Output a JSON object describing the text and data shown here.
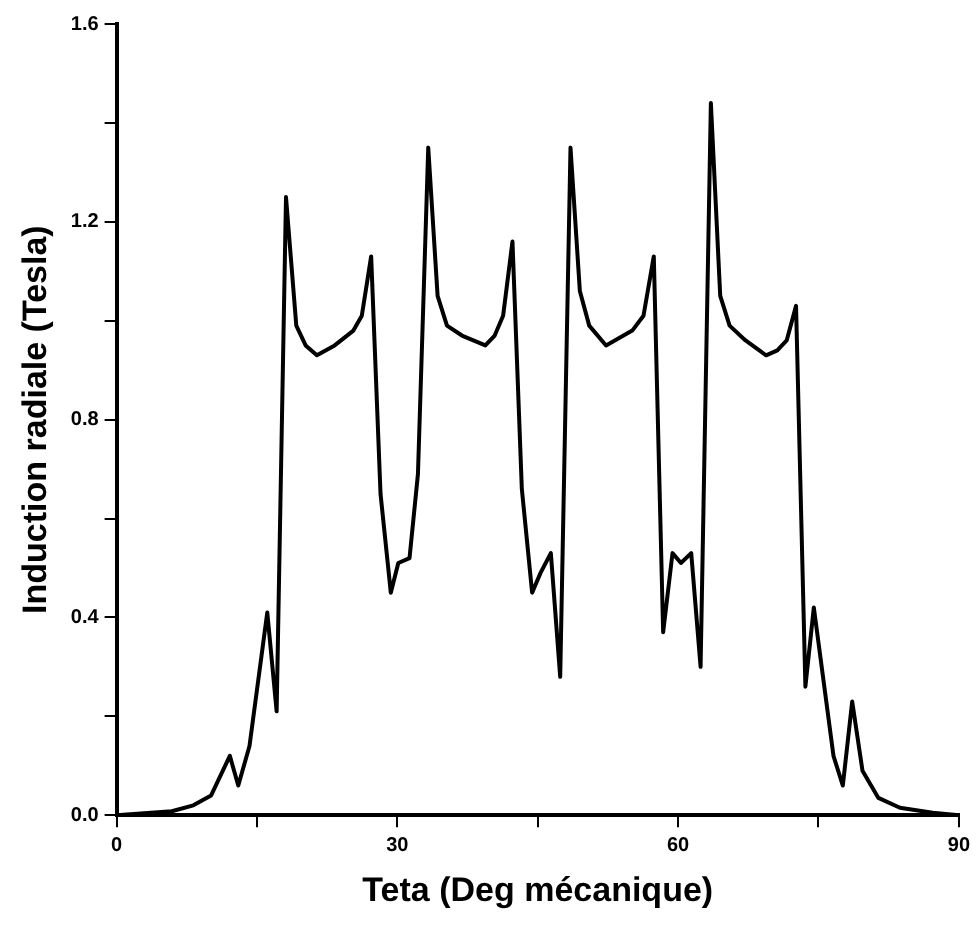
{
  "chart_data": {
    "type": "line",
    "xlabel": "Teta (Deg mécanique)",
    "ylabel": "Induction radiale (Tesla)",
    "x": [
      0,
      5.9,
      8.2,
      10.1,
      12.1,
      13.0,
      14.2,
      16.1,
      17.1,
      18.1,
      19.2,
      20.2,
      21.4,
      23.3,
      25.3,
      26.2,
      27.2,
      28.2,
      29.3,
      30.1,
      31.3,
      32.2,
      33.3,
      34.3,
      35.3,
      36.9,
      39.4,
      40.4,
      41.3,
      42.3,
      43.3,
      44.4,
      45.3,
      46.4,
      47.4,
      48.5,
      49.5,
      50.5,
      52.3,
      55.1,
      56.3,
      57.4,
      58.4,
      59.4,
      60.3,
      61.4,
      62.4,
      63.5,
      64.5,
      65.5,
      67.2,
      69.4,
      70.6,
      71.6,
      72.6,
      73.6,
      74.5,
      76.6,
      77.6,
      78.6,
      79.7,
      81.4,
      83.7,
      87.2,
      90
    ],
    "series": [
      {
        "color": "#000000",
        "values": [
          0,
          0.008,
          0.02,
          0.04,
          0.12,
          0.06,
          0.14,
          0.41,
          0.21,
          1.25,
          0.99,
          0.95,
          0.93,
          0.95,
          0.98,
          1.01,
          1.13,
          0.65,
          0.45,
          0.51,
          0.52,
          0.69,
          1.35,
          1.05,
          0.99,
          0.97,
          0.95,
          0.97,
          1.01,
          1.16,
          0.66,
          0.45,
          0.49,
          0.53,
          0.28,
          1.35,
          1.06,
          0.99,
          0.95,
          0.98,
          1.01,
          1.13,
          0.37,
          0.53,
          0.51,
          0.53,
          0.3,
          1.44,
          1.05,
          0.99,
          0.96,
          0.93,
          0.94,
          0.96,
          1.03,
          0.26,
          0.42,
          0.12,
          0.06,
          0.23,
          0.09,
          0.035,
          0.015,
          0.005,
          0
        ]
      }
    ],
    "xlim": [
      0,
      90
    ],
    "xticks": [
      0,
      {
        "value": 15,
        "label": null
      },
      30,
      {
        "value": 45,
        "label": null
      },
      60,
      {
        "value": 75,
        "label": null
      },
      90
    ],
    "ylim": [
      0,
      1.6
    ],
    "yticks": [
      {
        "value": 0,
        "label": "0.0"
      },
      {
        "value": 0.2,
        "label": null
      },
      0.4,
      {
        "value": 0.6,
        "label": null
      },
      0.8,
      {
        "value": 1.0,
        "label": null
      },
      1.2,
      {
        "value": 1.4,
        "label": null
      },
      1.6
    ],
    "grid": false,
    "legend": false,
    "marker": "none",
    "line_style": "solid"
  }
}
